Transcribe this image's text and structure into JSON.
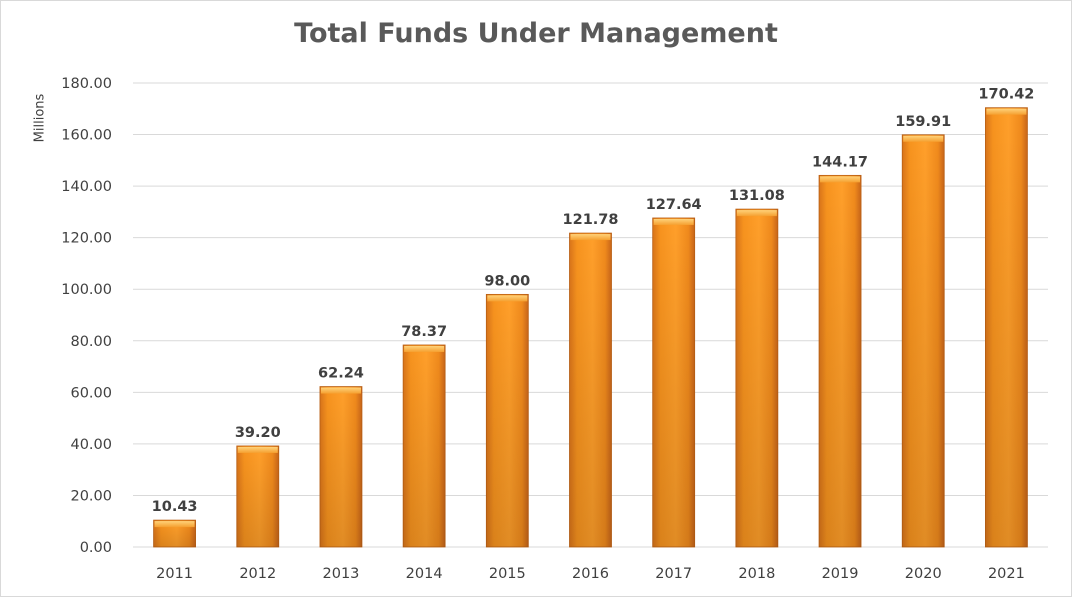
{
  "chart_data": {
    "type": "bar",
    "title": "Total Funds Under Management",
    "ylabel": "Millions",
    "xlabel": "",
    "categories": [
      "2011",
      "2012",
      "2013",
      "2014",
      "2015",
      "2016",
      "2017",
      "2018",
      "2019",
      "2020",
      "2021"
    ],
    "values": [
      10.43,
      39.2,
      62.24,
      78.37,
      98.0,
      121.78,
      127.64,
      131.08,
      144.17,
      159.91,
      170.42
    ],
    "data_labels": [
      "10.43",
      "39.20",
      "62.24",
      "78.37",
      "98.00",
      "121.78",
      "127.64",
      "131.08",
      "144.17",
      "159.91",
      "170.42"
    ],
    "ylim": [
      0,
      180
    ],
    "yticks": [
      "0.00",
      "20.00",
      "40.00",
      "60.00",
      "80.00",
      "100.00",
      "120.00",
      "140.00",
      "160.00",
      "180.00"
    ],
    "grid": true,
    "legend": "none",
    "colors": {
      "bar": "#f7931e",
      "bar_light": "#ffc35a",
      "bar_dark": "#d9741a",
      "grid": "#d9d9d9",
      "text": "#404040",
      "title": "#595959"
    }
  }
}
